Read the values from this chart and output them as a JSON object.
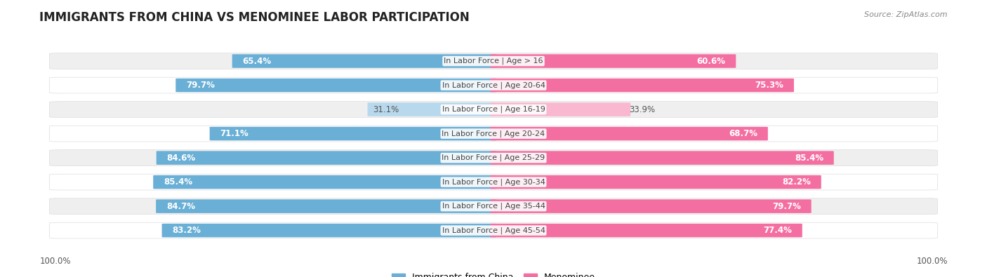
{
  "title": "IMMIGRANTS FROM CHINA VS MENOMINEE LABOR PARTICIPATION",
  "source": "Source: ZipAtlas.com",
  "categories": [
    "In Labor Force | Age > 16",
    "In Labor Force | Age 20-64",
    "In Labor Force | Age 16-19",
    "In Labor Force | Age 20-24",
    "In Labor Force | Age 25-29",
    "In Labor Force | Age 30-34",
    "In Labor Force | Age 35-44",
    "In Labor Force | Age 45-54"
  ],
  "china_values": [
    65.4,
    79.7,
    31.1,
    71.1,
    84.6,
    85.4,
    84.7,
    83.2
  ],
  "menominee_values": [
    60.6,
    75.3,
    33.9,
    68.7,
    85.4,
    82.2,
    79.7,
    77.4
  ],
  "china_color": "#6aafd6",
  "china_color_light": "#b8d8ed",
  "menominee_color": "#f46fa1",
  "menominee_color_light": "#f9b8d0",
  "row_bg_color": "#efefef",
  "row_bg_color_alt": "#ffffff",
  "title_fontsize": 12,
  "legend_fontsize": 9,
  "bar_label_fontsize": 8.5,
  "cat_label_fontsize": 8,
  "left_label": "100.0%",
  "right_label": "100.0%"
}
